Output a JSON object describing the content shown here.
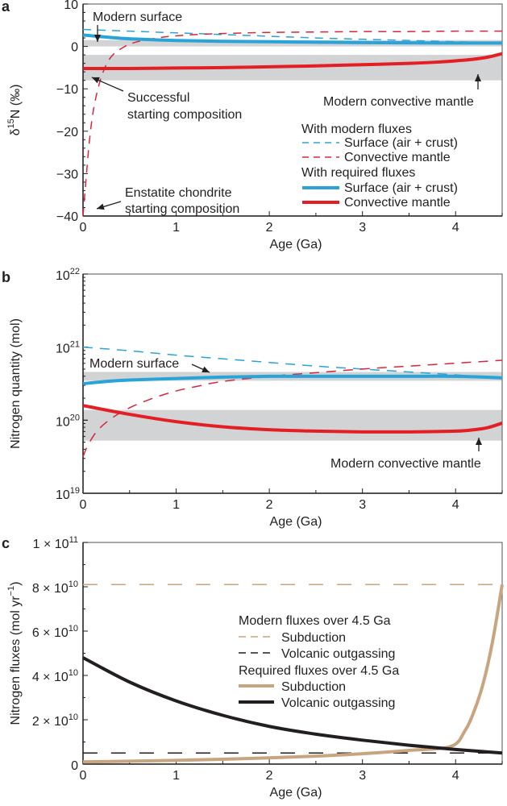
{
  "chart_data": [
    {
      "panel": "a",
      "type": "line",
      "xlabel": "Age (Ga)",
      "ylabel": "δ15N (‰)",
      "ylabel_parts": {
        "prefix": "δ",
        "sup": "15",
        "suffix": "N (‰)"
      },
      "xlim": [
        0,
        4.5
      ],
      "ylim": [
        -40,
        10
      ],
      "x_ticks": [
        0,
        1,
        2,
        3,
        4
      ],
      "y_ticks": [
        10,
        0,
        -10,
        -20,
        -30,
        -40
      ],
      "y_tick_labels": [
        "10",
        "0",
        "−10",
        "−20",
        "−30",
        "−40"
      ],
      "grid": false,
      "shaded_bands": [
        {
          "name": "Modern surface",
          "y_range": [
            0,
            1.5
          ]
        },
        {
          "name": "Modern convective mantle",
          "y_range": [
            -8,
            -2
          ]
        }
      ],
      "series": [
        {
          "name": "Surface (air + crust), modern fluxes",
          "style": "dashed",
          "color": "#29a3d8",
          "x": [
            0,
            0.5,
            1,
            1.5,
            2,
            2.5,
            3,
            3.5,
            4,
            4.5
          ],
          "y": [
            4,
            3.6,
            3.2,
            2.8,
            2.4,
            2.0,
            1.7,
            1.4,
            1.1,
            0.9
          ]
        },
        {
          "name": "Convective mantle, modern fluxes",
          "style": "dashed",
          "color": "#d7263d",
          "x": [
            0,
            0.03,
            0.07,
            0.12,
            0.2,
            0.3,
            0.45,
            0.6,
            0.8,
            1.0,
            1.3,
            1.6,
            2.0,
            2.5,
            3.0,
            3.5,
            4.0,
            4.5
          ],
          "y": [
            -40,
            -32,
            -22,
            -14,
            -7,
            -2.5,
            0,
            1.2,
            2.0,
            2.5,
            2.9,
            3.1,
            3.3,
            3.4,
            3.5,
            3.5,
            3.6,
            3.6
          ]
        },
        {
          "name": "Surface (air + crust), required fluxes",
          "style": "solid",
          "color": "#29a3d8",
          "x": [
            0,
            0.25,
            0.5,
            1,
            1.5,
            2,
            2.5,
            3,
            3.5,
            4,
            4.5
          ],
          "y": [
            2.7,
            2.2,
            1.8,
            1.4,
            1.2,
            1.1,
            1.0,
            0.9,
            0.85,
            0.8,
            0.8
          ]
        },
        {
          "name": "Convective mantle, required fluxes",
          "style": "solid",
          "color": "#e31e24",
          "x": [
            0,
            0.5,
            1,
            1.5,
            2,
            2.5,
            3,
            3.5,
            3.8,
            4.0,
            4.2,
            4.35,
            4.5
          ],
          "y": [
            -5.2,
            -5.2,
            -5.1,
            -5.0,
            -4.8,
            -4.6,
            -4.3,
            -4.0,
            -3.7,
            -3.4,
            -3.0,
            -2.5,
            -1.7
          ]
        }
      ],
      "annotations": [
        {
          "text": "Modern surface",
          "points_to_x": 0.1,
          "points_to_y": 1
        },
        {
          "text_lines": [
            "Successful",
            "starting composition"
          ],
          "points_to_x": 0.05,
          "points_to_y": -7.5
        },
        {
          "text_lines": [
            "Enstatite chondrite",
            "starting composition"
          ],
          "points_to_x": 0.1,
          "points_to_y": -39
        },
        {
          "text": "Modern convective mantle",
          "points_to_x": 4.25,
          "points_to_y": -2.2
        }
      ],
      "legend": {
        "placement": "bottom-right",
        "groups": [
          {
            "title": "With modern fluxes",
            "entries": [
              {
                "label": "Surface (air + crust)",
                "style": "dashed",
                "color": "#29a3d8"
              },
              {
                "label": "Convective mantle",
                "style": "dashed",
                "color": "#d7263d"
              }
            ]
          },
          {
            "title": "With required fluxes",
            "entries": [
              {
                "label": "Surface (air + crust)",
                "style": "solid",
                "color": "#29a3d8"
              },
              {
                "label": "Convective mantle",
                "style": "solid",
                "color": "#e31e24"
              }
            ]
          }
        ]
      }
    },
    {
      "panel": "b",
      "type": "line",
      "xlabel": "Age (Ga)",
      "ylabel": "Nitrogen quantity (mol)",
      "yscale": "log",
      "xlim": [
        0,
        4.5
      ],
      "ylim_exponent": [
        19,
        22
      ],
      "x_ticks": [
        0,
        1,
        2,
        3,
        4
      ],
      "y_ticks_exponent": [
        22,
        21,
        20,
        19
      ],
      "y_tick_base": "10",
      "grid": false,
      "shaded_bands_log10": [
        {
          "name": "Modern surface",
          "y_range": [
            20.54,
            20.66
          ]
        },
        {
          "name": "Modern convective mantle",
          "y_range": [
            19.72,
            20.14
          ]
        }
      ],
      "series": [
        {
          "name": "Surface (air + crust), modern fluxes",
          "style": "dashed",
          "color": "#29a3d8",
          "x": [
            0,
            0.5,
            1,
            1.5,
            2,
            2.5,
            3,
            3.5,
            4,
            4.5
          ],
          "log10_y": [
            21.0,
            20.95,
            20.89,
            20.84,
            20.79,
            20.74,
            20.7,
            20.66,
            20.62,
            20.57
          ]
        },
        {
          "name": "Convective mantle, modern fluxes",
          "style": "dashed",
          "color": "#d7263d",
          "x": [
            0,
            0.05,
            0.15,
            0.3,
            0.5,
            0.75,
            1.0,
            1.25,
            1.5,
            2.0,
            2.5,
            3.0,
            3.5,
            4.0,
            4.5
          ],
          "log10_y": [
            19.5,
            19.65,
            19.85,
            20.02,
            20.17,
            20.3,
            20.4,
            20.47,
            20.53,
            20.6,
            20.65,
            20.7,
            20.74,
            20.78,
            20.82
          ]
        },
        {
          "name": "Surface (air + crust), required fluxes",
          "style": "solid",
          "color": "#29a3d8",
          "x": [
            0,
            0.25,
            0.5,
            1,
            1.5,
            2,
            2.5,
            3,
            3.5,
            4,
            4.5
          ],
          "log10_y": [
            20.5,
            20.53,
            20.55,
            20.57,
            20.59,
            20.6,
            20.6,
            20.6,
            20.6,
            20.6,
            20.58
          ]
        },
        {
          "name": "Convective mantle, required fluxes",
          "style": "solid",
          "color": "#e31e24",
          "x": [
            0,
            0.5,
            1,
            1.5,
            2,
            2.5,
            3,
            3.5,
            4.0,
            4.2,
            4.35,
            4.5
          ],
          "log10_y": [
            20.2,
            20.08,
            19.98,
            19.91,
            19.87,
            19.85,
            19.84,
            19.84,
            19.85,
            19.87,
            19.9,
            19.96
          ]
        }
      ],
      "annotations": [
        {
          "text": "Modern surface",
          "points_to_x": 1.55,
          "points_to_y_log10": 20.64
        },
        {
          "text": "Modern convective mantle",
          "points_to_x": 4.25,
          "points_to_y_log10": 19.86
        }
      ]
    },
    {
      "panel": "c",
      "type": "line",
      "xlabel": "Age (Ga)",
      "ylabel": "Nitrogen fluxes (mol yr−1)",
      "ylabel_parts": {
        "prefix": "Nitrogen fluxes (mol yr",
        "sup": "−1",
        "suffix": ")"
      },
      "xlim": [
        0,
        4.5
      ],
      "ylim": [
        0,
        100000000000.0
      ],
      "x_ticks": [
        0,
        1,
        2,
        3,
        4
      ],
      "y_ticks": [
        0,
        20000000000.0,
        40000000000.0,
        60000000000.0,
        80000000000.0,
        100000000000.0
      ],
      "y_tick_labels": [
        {
          "mant": "0",
          "exp": ""
        },
        {
          "mant": "2 × 10",
          "exp": "10"
        },
        {
          "mant": "4 × 10",
          "exp": "10"
        },
        {
          "mant": "6 × 10",
          "exp": "10"
        },
        {
          "mant": "8 × 10",
          "exp": "10"
        },
        {
          "mant": "1 × 10",
          "exp": "11"
        }
      ],
      "grid": false,
      "series": [
        {
          "name": "Subduction, modern fluxes over 4.5 Ga",
          "style": "dashed",
          "color": "#c9a57f",
          "x": [
            0,
            4.5
          ],
          "y": [
            81000000000.0,
            81000000000.0
          ]
        },
        {
          "name": "Volcanic outgassing, modern fluxes over 4.5 Ga",
          "style": "dashed",
          "color": "#231f20",
          "x": [
            0,
            4.5
          ],
          "y": [
            5000000000.0,
            5000000000.0
          ]
        },
        {
          "name": "Subduction, required fluxes over 4.5 Ga",
          "style": "solid",
          "color": "#c9a57f",
          "x": [
            0,
            0.5,
            1,
            1.5,
            2,
            2.5,
            3,
            3.5,
            3.95,
            4.1,
            4.2,
            4.3,
            4.4,
            4.5
          ],
          "y": [
            1000000000.0,
            1300000000.0,
            1700000000.0,
            2200000000.0,
            2800000000.0,
            3600000000.0,
            4700000000.0,
            6200000000.0,
            8000000000.0,
            15000000000.0,
            24000000000.0,
            37000000000.0,
            56000000000.0,
            81000000000.0
          ]
        },
        {
          "name": "Volcanic outgassing, required fluxes over 4.5 Ga",
          "style": "solid",
          "color": "#231f20",
          "x": [
            0,
            0.5,
            1,
            1.5,
            2,
            2.5,
            3,
            3.5,
            4,
            4.5
          ],
          "y": [
            48000000000.0,
            37000000000.0,
            28500000000.0,
            22000000000.0,
            17000000000.0,
            13500000000.0,
            10800000000.0,
            8500000000.0,
            6600000000.0,
            5000000000.0
          ]
        }
      ],
      "legend": {
        "placement": "center-right",
        "groups": [
          {
            "title": "Modern fluxes over 4.5 Ga",
            "entries": [
              {
                "label": "Subduction",
                "style": "dashed",
                "color": "#c9a57f"
              },
              {
                "label": "Volcanic outgassing",
                "style": "dashed",
                "color": "#231f20"
              }
            ]
          },
          {
            "title": "Required fluxes over 4.5 Ga",
            "entries": [
              {
                "label": "Subduction",
                "style": "solid",
                "color": "#c9a57f"
              },
              {
                "label": "Volcanic outgassing",
                "style": "solid",
                "color": "#231f20"
              }
            ]
          }
        ]
      }
    }
  ],
  "colors": {
    "band": "#d1d3d4",
    "axis": "#231f20"
  }
}
